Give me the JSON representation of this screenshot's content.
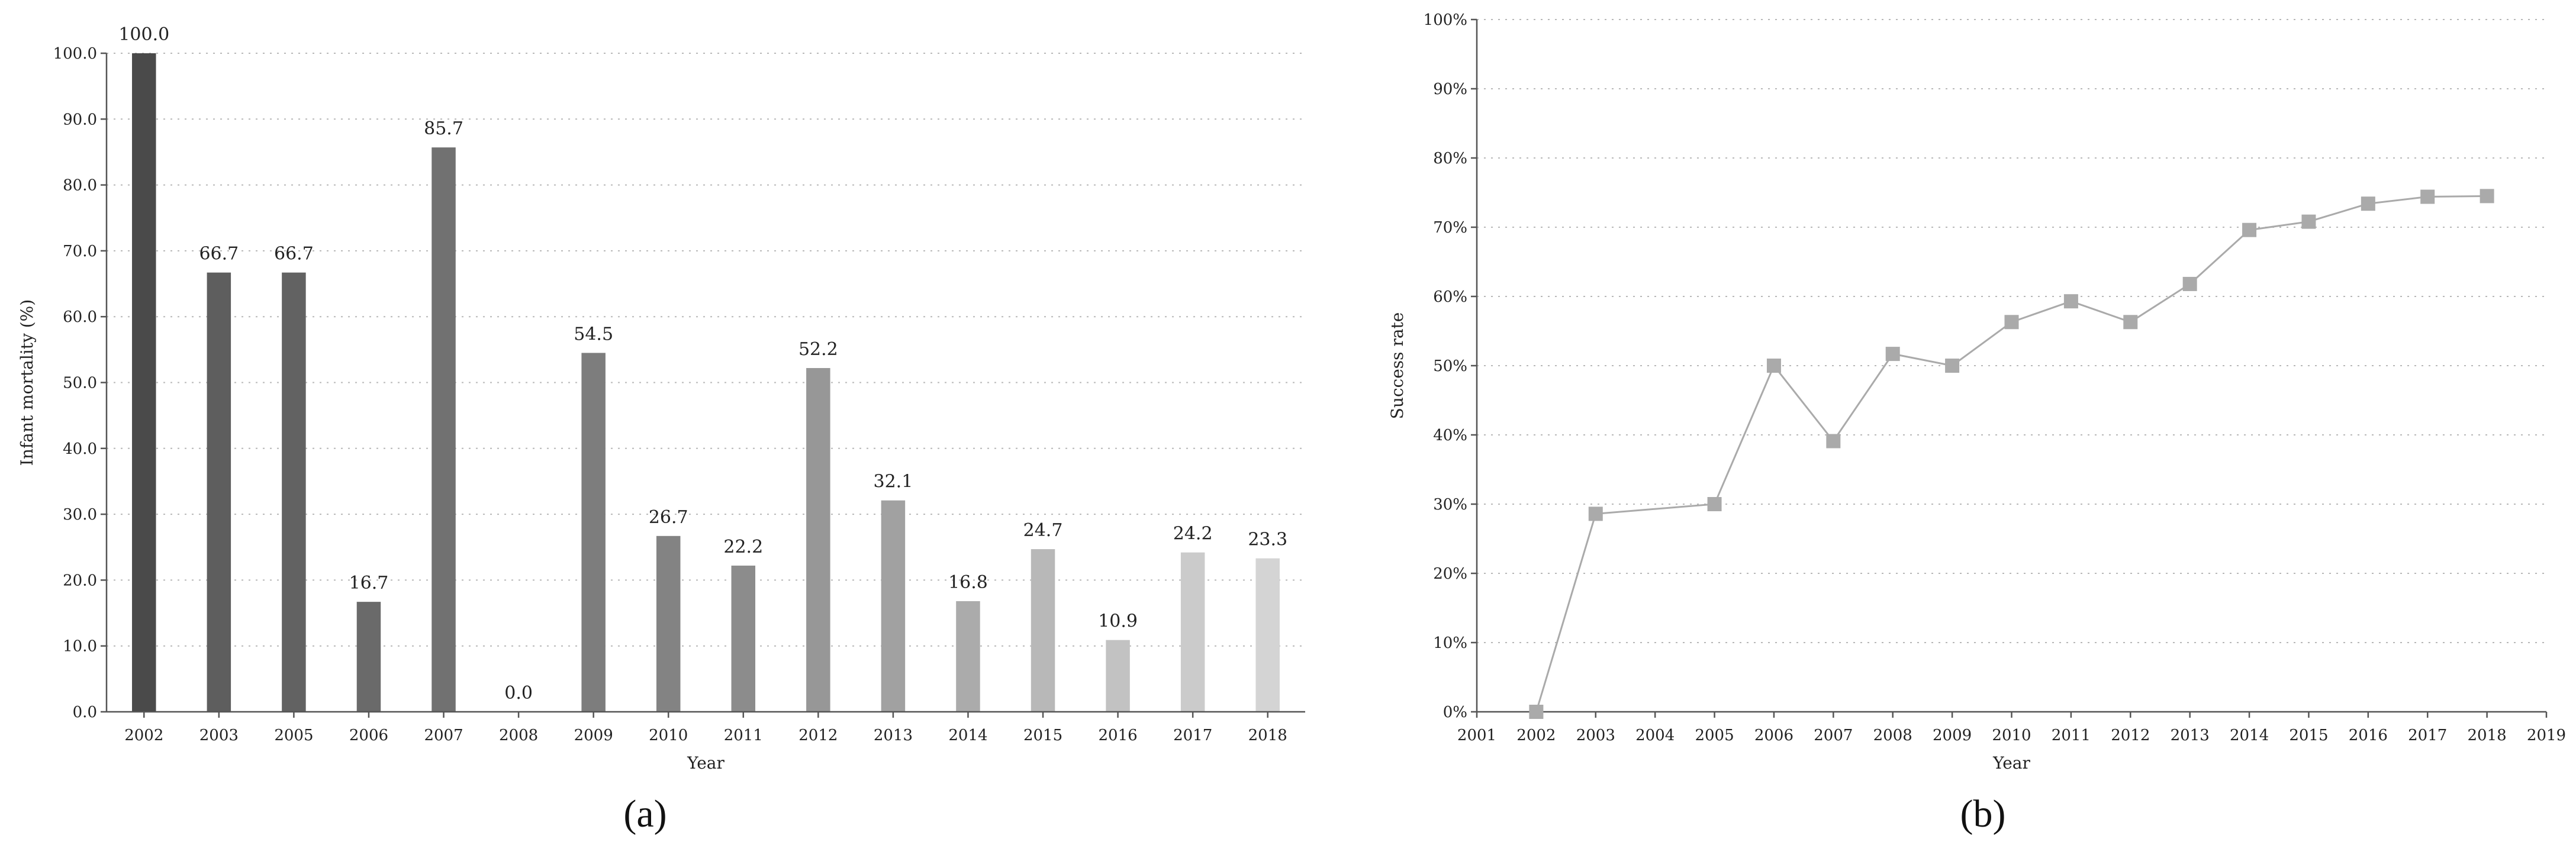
{
  "chart_data": [
    {
      "type": "bar",
      "panel_label": "(a)",
      "xlabel": "Year",
      "ylabel": "Infant mortality (%)",
      "ylim": [
        0,
        100
      ],
      "yticks": [
        "0.0",
        "10.0",
        "20.0",
        "30.0",
        "40.0",
        "50.0",
        "60.0",
        "70.0",
        "80.0",
        "90.0",
        "100.0"
      ],
      "grid": "horizontal dotted",
      "categories": [
        "2002",
        "2003",
        "2005",
        "2006",
        "2007",
        "2008",
        "2009",
        "2010",
        "2011",
        "2012",
        "2013",
        "2014",
        "2015",
        "2016",
        "2017",
        "2018"
      ],
      "values": [
        100.0,
        66.7,
        66.7,
        16.7,
        85.7,
        0.0,
        54.5,
        26.7,
        22.2,
        52.2,
        32.1,
        16.8,
        24.7,
        10.9,
        24.2,
        23.3
      ],
      "data_labels": [
        "100.0",
        "66.7",
        "66.7",
        "16.7",
        "85.7",
        "0.0",
        "54.5",
        "26.7",
        "22.2",
        "52.2",
        "32.1",
        "16.8",
        "24.7",
        "10.9",
        "24.2",
        "23.3"
      ],
      "colors": [
        "#4a4a4a",
        "#5e5e5e",
        "#626262",
        "#6a6a6a",
        "#717171",
        "#777777",
        "#7d7d7d",
        "#838383",
        "#8c8c8c",
        "#979797",
        "#a1a1a1",
        "#ababab",
        "#b8b8b8",
        "#c2c2c2",
        "#cbcbcb",
        "#d4d4d4"
      ]
    },
    {
      "type": "line",
      "panel_label": "(b)",
      "xlabel": "Year",
      "ylabel": "Success rate",
      "xlim": [
        2001,
        2019
      ],
      "ylim": [
        0,
        100
      ],
      "xticks": [
        "2001",
        "2002",
        "2003",
        "2004",
        "2005",
        "2006",
        "2007",
        "2008",
        "2009",
        "2010",
        "2011",
        "2012",
        "2013",
        "2014",
        "2015",
        "2016",
        "2017",
        "2018",
        "2019"
      ],
      "yticks": [
        "0%",
        "10%",
        "20%",
        "30%",
        "40%",
        "50%",
        "60%",
        "70%",
        "80%",
        "90%",
        "100%"
      ],
      "grid": "horizontal dotted",
      "marker": "square",
      "color": "#aaaaaa",
      "x": [
        2002,
        2003,
        2005,
        2006,
        2007,
        2008,
        2009,
        2010,
        2011,
        2012,
        2013,
        2014,
        2015,
        2016,
        2017,
        2018
      ],
      "y": [
        0,
        28.6,
        30.0,
        50.0,
        39.1,
        51.7,
        50.0,
        56.3,
        59.3,
        56.3,
        61.8,
        69.6,
        70.8,
        73.4,
        74.4,
        74.5
      ]
    }
  ]
}
